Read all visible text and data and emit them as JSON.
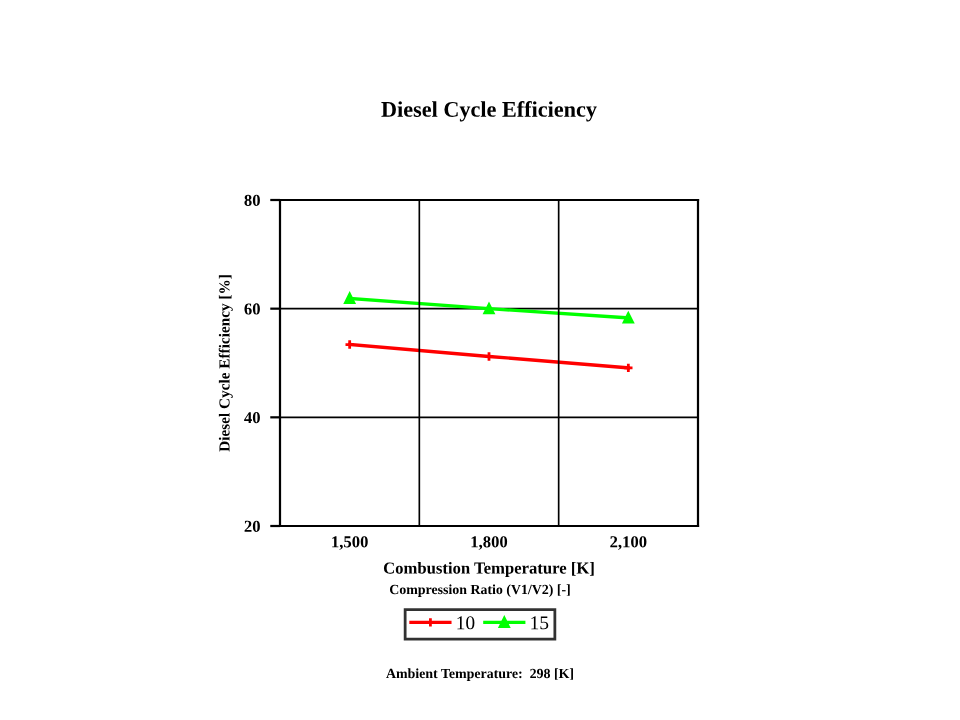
{
  "chart_data": {
    "type": "line",
    "title": "Diesel Cycle Efficiency",
    "xlabel": "Combustion Temperature [K]",
    "ylabel": "Diesel Cycle Efficiency [%]",
    "legend_title": "Compression Ratio (V1/V2) [-]",
    "categories": [
      "1,500",
      "1,800",
      "2,100"
    ],
    "series": [
      {
        "name": "10",
        "color": "#ff0000",
        "marker": "cross",
        "values": [
          53.4,
          51.2,
          49.1
        ]
      },
      {
        "name": "15",
        "color": "#00ff00",
        "marker": "triangle",
        "values": [
          61.9,
          60.0,
          58.3
        ]
      }
    ],
    "ylim": [
      20,
      80
    ],
    "yticks": [
      20,
      40,
      60,
      80
    ],
    "grid": true,
    "legend": "bottom",
    "line_style": "solid",
    "annotations": [
      "Ambient Temperature:  298 [K]"
    ]
  }
}
